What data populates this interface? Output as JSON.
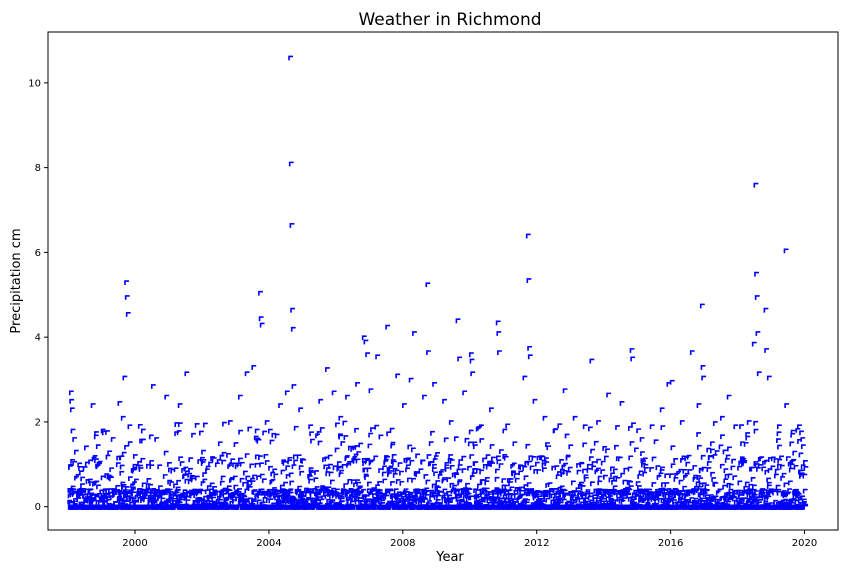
{
  "chart_data": {
    "type": "scatter",
    "title": "Weather in Richmond",
    "xlabel": "Year",
    "ylabel": "Precipitation cm",
    "xlim": [
      1997.4,
      2021.0
    ],
    "ylim": [
      -0.55,
      11.2
    ],
    "xticks": [
      2000,
      2004,
      2008,
      2012,
      2016,
      2020
    ],
    "yticks": [
      0,
      2,
      4,
      6,
      8,
      10
    ],
    "grid": false,
    "legend": "none",
    "marker_color": "#0000ff",
    "date_range": [
      "1998-01",
      "2019-12"
    ],
    "series": [
      {
        "points": [
          [
            1998.05,
            2.7
          ],
          [
            1998.06,
            2.5
          ],
          [
            1998.08,
            2.3
          ],
          [
            1998.1,
            1.8
          ],
          [
            1998.15,
            1.6
          ],
          [
            1998.2,
            1.3
          ],
          [
            1998.3,
            1.0
          ],
          [
            1998.5,
            1.4
          ],
          [
            1998.7,
            2.4
          ],
          [
            1998.8,
            1.1
          ],
          [
            1999.0,
            1.8
          ],
          [
            1999.3,
            1.6
          ],
          [
            1999.5,
            2.45
          ],
          [
            1999.6,
            2.1
          ],
          [
            1999.65,
            3.05
          ],
          [
            1999.7,
            5.3
          ],
          [
            1999.72,
            4.95
          ],
          [
            1999.75,
            4.55
          ],
          [
            1999.8,
            1.9
          ],
          [
            2000.2,
            1.8
          ],
          [
            2000.5,
            2.85
          ],
          [
            2000.6,
            1.6
          ],
          [
            2000.9,
            2.6
          ],
          [
            2001.3,
            2.4
          ],
          [
            2001.5,
            3.15
          ],
          [
            2001.7,
            1.7
          ],
          [
            2002.0,
            1.3
          ],
          [
            2002.5,
            1.5
          ],
          [
            2002.8,
            2.0
          ],
          [
            2003.1,
            2.6
          ],
          [
            2003.3,
            3.15
          ],
          [
            2003.5,
            3.3
          ],
          [
            2003.6,
            1.8
          ],
          [
            2003.7,
            5.05
          ],
          [
            2003.72,
            4.45
          ],
          [
            2003.75,
            4.3
          ],
          [
            2003.9,
            2.0
          ],
          [
            2004.1,
            1.7
          ],
          [
            2004.3,
            2.4
          ],
          [
            2004.5,
            2.7
          ],
          [
            2004.6,
            10.6
          ],
          [
            2004.62,
            8.1
          ],
          [
            2004.64,
            6.65
          ],
          [
            2004.66,
            4.65
          ],
          [
            2004.68,
            4.2
          ],
          [
            2004.7,
            2.85
          ],
          [
            2004.9,
            2.3
          ],
          [
            2005.2,
            1.9
          ],
          [
            2005.5,
            2.5
          ],
          [
            2005.7,
            3.25
          ],
          [
            2005.9,
            2.7
          ],
          [
            2006.1,
            2.1
          ],
          [
            2006.3,
            2.6
          ],
          [
            2006.6,
            2.9
          ],
          [
            2006.8,
            4.0
          ],
          [
            2006.85,
            3.9
          ],
          [
            2006.9,
            3.6
          ],
          [
            2007.0,
            2.75
          ],
          [
            2007.2,
            3.55
          ],
          [
            2007.5,
            4.25
          ],
          [
            2007.8,
            3.1
          ],
          [
            2008.0,
            2.4
          ],
          [
            2008.2,
            3.0
          ],
          [
            2008.3,
            4.1
          ],
          [
            2008.6,
            2.6
          ],
          [
            2008.7,
            5.25
          ],
          [
            2008.72,
            3.65
          ],
          [
            2008.9,
            2.9
          ],
          [
            2009.2,
            2.5
          ],
          [
            2009.4,
            2.0
          ],
          [
            2009.6,
            4.4
          ],
          [
            2009.65,
            3.5
          ],
          [
            2009.8,
            2.7
          ],
          [
            2010.0,
            3.6
          ],
          [
            2010.02,
            3.45
          ],
          [
            2010.04,
            3.15
          ],
          [
            2010.3,
            1.9
          ],
          [
            2010.6,
            2.3
          ],
          [
            2010.8,
            4.35
          ],
          [
            2010.82,
            4.1
          ],
          [
            2010.84,
            3.65
          ],
          [
            2011.0,
            1.8
          ],
          [
            2011.3,
            1.5
          ],
          [
            2011.6,
            3.05
          ],
          [
            2011.7,
            6.4
          ],
          [
            2011.72,
            5.35
          ],
          [
            2011.74,
            3.75
          ],
          [
            2011.76,
            3.55
          ],
          [
            2011.9,
            2.5
          ],
          [
            2012.2,
            2.1
          ],
          [
            2012.5,
            1.8
          ],
          [
            2012.8,
            2.75
          ],
          [
            2013.1,
            2.1
          ],
          [
            2013.4,
            1.9
          ],
          [
            2013.6,
            3.45
          ],
          [
            2013.8,
            2.0
          ],
          [
            2014.1,
            2.65
          ],
          [
            2014.5,
            2.45
          ],
          [
            2014.8,
            3.7
          ],
          [
            2014.82,
            3.5
          ],
          [
            2015.1,
            1.6
          ],
          [
            2015.4,
            1.9
          ],
          [
            2015.7,
            2.3
          ],
          [
            2015.9,
            2.9
          ],
          [
            2016.0,
            2.95
          ],
          [
            2016.3,
            2.0
          ],
          [
            2016.6,
            3.65
          ],
          [
            2016.8,
            2.4
          ],
          [
            2016.9,
            4.75
          ],
          [
            2016.92,
            3.3
          ],
          [
            2016.94,
            3.05
          ],
          [
            2017.2,
            1.5
          ],
          [
            2017.5,
            2.1
          ],
          [
            2017.7,
            2.6
          ],
          [
            2017.9,
            1.9
          ],
          [
            2018.1,
            1.5
          ],
          [
            2018.3,
            2.0
          ],
          [
            2018.45,
            3.85
          ],
          [
            2018.5,
            7.6
          ],
          [
            2018.52,
            5.5
          ],
          [
            2018.54,
            4.95
          ],
          [
            2018.56,
            4.1
          ],
          [
            2018.6,
            3.15
          ],
          [
            2018.8,
            4.65
          ],
          [
            2018.82,
            3.7
          ],
          [
            2018.9,
            3.05
          ],
          [
            2019.2,
            1.9
          ],
          [
            2019.4,
            6.05
          ],
          [
            2019.42,
            2.4
          ],
          [
            2019.6,
            1.7
          ],
          [
            2019.8,
            1.9
          ],
          [
            2019.9,
            1.6
          ]
        ]
      }
    ]
  }
}
